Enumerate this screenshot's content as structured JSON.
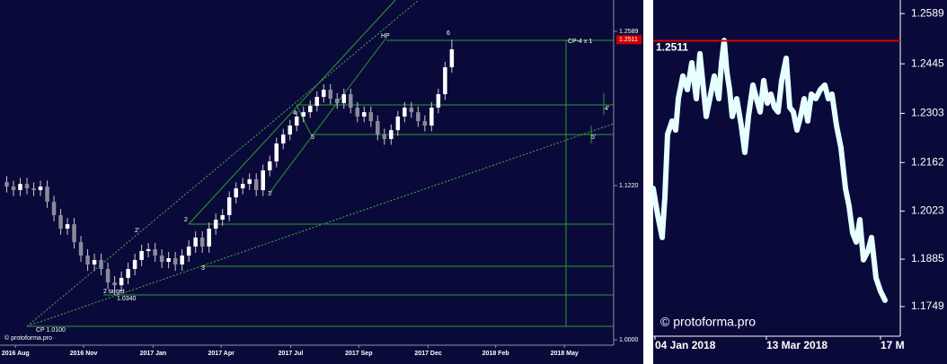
{
  "chart_data": [
    {
      "type": "candlestick",
      "log_scale": true,
      "bull_color": "#ffffff",
      "bear_color": "#8a8a9a",
      "wick_color": "#c8c8d0",
      "x": [
        1,
        2,
        3,
        4,
        5,
        6,
        7,
        8,
        9,
        10,
        11,
        12,
        13,
        14,
        15,
        16,
        17,
        18,
        19,
        20,
        21,
        22,
        23,
        24,
        25,
        26,
        27,
        28,
        29,
        30,
        31,
        32,
        33,
        34,
        35,
        36,
        37,
        38,
        39,
        40,
        41,
        42,
        43,
        44,
        45,
        46,
        47,
        48,
        49,
        50,
        51,
        52,
        53,
        54,
        55,
        56,
        57,
        58,
        59,
        60,
        61,
        62,
        63,
        64,
        65,
        66,
        67
      ],
      "open": [
        1.125,
        1.1212,
        1.1182,
        1.1234,
        1.1197,
        1.1182,
        1.1212,
        1.1085,
        1.0975,
        1.0865,
        1.0901,
        1.0756,
        1.0649,
        1.0578,
        1.0614,
        1.0543,
        1.0437,
        1.0416,
        1.0473,
        1.0543,
        1.0614,
        1.0685,
        1.0699,
        1.0649,
        1.0599,
        1.0628,
        1.0578,
        1.0649,
        1.0721,
        1.0793,
        1.0721,
        1.0865,
        1.0938,
        1.0975,
        1.1122,
        1.1197,
        1.1234,
        1.1273,
        1.1182,
        1.1348,
        1.1424,
        1.1578,
        1.1656,
        1.1734,
        1.1813,
        1.1852,
        1.1908,
        1.1988,
        1.2052,
        1.1972,
        1.1932,
        1.2012,
        1.1892,
        1.1813,
        1.1852,
        1.1773,
        1.1656,
        1.1617,
        1.1694,
        1.1813,
        1.1892,
        1.1852,
        1.1773,
        1.1734,
        1.1892,
        1.2012,
        1.2256
      ],
      "high": [
        1.13,
        1.1262,
        1.1284,
        1.1284,
        1.1247,
        1.1262,
        1.1262,
        1.1135,
        1.1025,
        1.0951,
        1.0951,
        1.0806,
        1.0699,
        1.0664,
        1.0664,
        1.0593,
        1.0487,
        1.0523,
        1.0593,
        1.0664,
        1.0735,
        1.0749,
        1.0749,
        1.0699,
        1.0678,
        1.0678,
        1.0699,
        1.0771,
        1.0843,
        1.0843,
        1.0915,
        1.0988,
        1.1025,
        1.1172,
        1.1247,
        1.1284,
        1.1323,
        1.1323,
        1.1398,
        1.1474,
        1.1628,
        1.1706,
        1.1784,
        1.1863,
        1.1902,
        1.1958,
        1.2038,
        1.2102,
        1.2102,
        1.2022,
        1.2062,
        1.2062,
        1.1942,
        1.1902,
        1.1902,
        1.1823,
        1.1706,
        1.1744,
        1.1863,
        1.1942,
        1.1942,
        1.1902,
        1.1823,
        1.1942,
        1.2062,
        1.2306,
        1.2511
      ],
      "low": [
        1.1162,
        1.1132,
        1.1132,
        1.1147,
        1.1132,
        1.1132,
        1.1035,
        1.0925,
        1.0815,
        1.0815,
        1.0706,
        1.0599,
        1.0528,
        1.0528,
        1.0493,
        1.0387,
        1.034,
        1.0366,
        1.0423,
        1.0493,
        1.0564,
        1.0635,
        1.0599,
        1.0549,
        1.0549,
        1.0528,
        1.0528,
        1.0599,
        1.0671,
        1.0671,
        1.0671,
        1.0815,
        1.0888,
        1.0925,
        1.1072,
        1.1147,
        1.1184,
        1.1132,
        1.1132,
        1.1298,
        1.1374,
        1.1528,
        1.1606,
        1.1684,
        1.1763,
        1.1802,
        1.1858,
        1.1938,
        1.1922,
        1.1882,
        1.1882,
        1.1842,
        1.1763,
        1.1763,
        1.1723,
        1.1606,
        1.1567,
        1.1567,
        1.1644,
        1.1763,
        1.1802,
        1.1723,
        1.1684,
        1.1684,
        1.1842,
        1.1962,
        1.2206
      ],
      "close": [
        1.1212,
        1.1182,
        1.1234,
        1.1197,
        1.1182,
        1.1212,
        1.1085,
        1.0975,
        1.0865,
        1.0901,
        1.0756,
        1.0649,
        1.0578,
        1.0614,
        1.0543,
        1.0437,
        1.0416,
        1.0473,
        1.0543,
        1.0614,
        1.0685,
        1.0699,
        1.0649,
        1.0599,
        1.0628,
        1.0578,
        1.0649,
        1.0721,
        1.0793,
        1.0721,
        1.0865,
        1.0938,
        1.0975,
        1.1122,
        1.1197,
        1.1234,
        1.1273,
        1.1182,
        1.1348,
        1.1424,
        1.1578,
        1.1656,
        1.1734,
        1.1813,
        1.1852,
        1.1908,
        1.1988,
        1.2052,
        1.1972,
        1.1932,
        1.2012,
        1.1892,
        1.1813,
        1.1852,
        1.1773,
        1.1656,
        1.1617,
        1.1694,
        1.1813,
        1.1892,
        1.1852,
        1.1773,
        1.1734,
        1.1892,
        1.2012,
        1.2256,
        1.2421
      ],
      "xlim": [
        0,
        91
      ],
      "xticks": [
        {
          "value": 2.3,
          "label": "2016 Aug"
        },
        {
          "value": 12.4,
          "label": "2016 Nov"
        },
        {
          "value": 22.7,
          "label": "2017 Jan"
        },
        {
          "value": 32.8,
          "label": "2017 Apr"
        },
        {
          "value": 43.1,
          "label": "2017 Jul"
        },
        {
          "value": 53.2,
          "label": "2017 Sep"
        },
        {
          "value": 63.5,
          "label": "2017 Dec"
        },
        {
          "value": 73.5,
          "label": "2018 Feb"
        },
        {
          "value": 83.7,
          "label": "2018 May"
        }
      ],
      "ylim": [
        0.996,
        1.2887
      ],
      "yticks": [
        1.2589,
        {
          "value": 1.122,
          "label": "1.1220"
        },
        {
          "value": 1.0,
          "label": "1.0000"
        }
      ],
      "last_price": 1.2511,
      "last_price_color": "#d00000",
      "annotations": [
        "HP",
        "6",
        "CP-4 x 1",
        "4",
        "4'",
        "5",
        "5'",
        "3'",
        "2",
        "2'",
        "3",
        "2 target",
        "1.0340",
        "CP 1.0100"
      ],
      "watermark": "© protoforma.pro"
    },
    {
      "type": "line",
      "color": "#e6ffff",
      "x": [
        0,
        5,
        10,
        13,
        16,
        21,
        25,
        28,
        33,
        38,
        43,
        48,
        52,
        55,
        59,
        63,
        68,
        73,
        76,
        79,
        82,
        85,
        88,
        93,
        98,
        102,
        106,
        111,
        115,
        119,
        123,
        127,
        131,
        135,
        139,
        143,
        148,
        152,
        156,
        160,
        164,
        168,
        172,
        176,
        181,
        186,
        191,
        195,
        199,
        204,
        209,
        214,
        218,
        222,
        226,
        230,
        234,
        239,
        243,
        248,
        253,
        258
      ],
      "values": [
        1.2088,
        1.2011,
        1.1947,
        1.2063,
        1.2243,
        1.2281,
        1.2255,
        1.2345,
        1.241,
        1.2371,
        1.2448,
        1.2345,
        1.2474,
        1.2397,
        1.2294,
        1.2345,
        1.241,
        1.2345,
        1.2448,
        1.2512,
        1.2422,
        1.2371,
        1.2294,
        1.2345,
        1.2268,
        1.2191,
        1.2294,
        1.2384,
        1.2345,
        1.2307,
        1.2397,
        1.2332,
        1.2358,
        1.232,
        1.2307,
        1.2397,
        1.2461,
        1.232,
        1.2307,
        1.2255,
        1.2294,
        1.2345,
        1.2281,
        1.2358,
        1.2345,
        1.2371,
        1.2384,
        1.2345,
        1.2358,
        1.2268,
        1.2204,
        1.2088,
        1.2037,
        1.196,
        1.1934,
        1.1998,
        1.1883,
        1.1908,
        1.1947,
        1.1831,
        1.1793,
        1.1767
      ],
      "xlim": [
        0,
        275
      ],
      "xticks": [
        {
          "value": 2,
          "label": "04 Jan 2018"
        },
        {
          "value": 126,
          "label": "13 Mar 2018"
        },
        {
          "value": 253,
          "label": "17 M"
        }
      ],
      "ylim": [
        1.1664,
        1.2628
      ],
      "yticks": [
        1.2589,
        1.2445,
        1.2303,
        1.2162,
        1.2023,
        1.1885,
        1.1749
      ],
      "hline": 1.2511,
      "hline_color": "#e00000",
      "watermark": "© protoforma.pro"
    }
  ]
}
